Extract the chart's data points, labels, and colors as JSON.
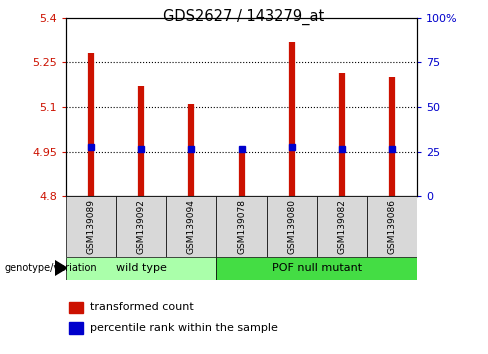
{
  "title": "GDS2627 / 143279_at",
  "samples": [
    "GSM139089",
    "GSM139092",
    "GSM139094",
    "GSM139078",
    "GSM139080",
    "GSM139082",
    "GSM139086"
  ],
  "transformed_count": [
    5.28,
    5.17,
    5.11,
    4.945,
    5.32,
    5.215,
    5.2
  ],
  "percentile_rank_y": [
    4.966,
    4.959,
    4.959,
    4.958,
    4.966,
    4.959,
    4.959
  ],
  "y_min": 4.8,
  "y_max": 5.4,
  "y_ticks": [
    4.8,
    4.95,
    5.1,
    5.25,
    5.4
  ],
  "y_tick_labels": [
    "4.8",
    "4.95",
    "5.1",
    "5.25",
    "5.4"
  ],
  "right_y_ticks_pct": [
    0,
    25,
    50,
    75,
    100
  ],
  "right_y_labels": [
    "0",
    "25",
    "50",
    "75",
    "100%"
  ],
  "groups": [
    {
      "label": "wild type",
      "indices": [
        0,
        1,
        2
      ],
      "color": "#aaffaa"
    },
    {
      "label": "POF null mutant",
      "indices": [
        3,
        4,
        5,
        6
      ],
      "color": "#44dd44"
    }
  ],
  "bar_color": "#cc1100",
  "marker_color": "#0000cc",
  "genotype_label": "genotype/variation",
  "legend_bar_label": "transformed count",
  "legend_marker_label": "percentile rank within the sample",
  "sample_box_color": "#d8d8d8",
  "plot_bg": "#ffffff"
}
